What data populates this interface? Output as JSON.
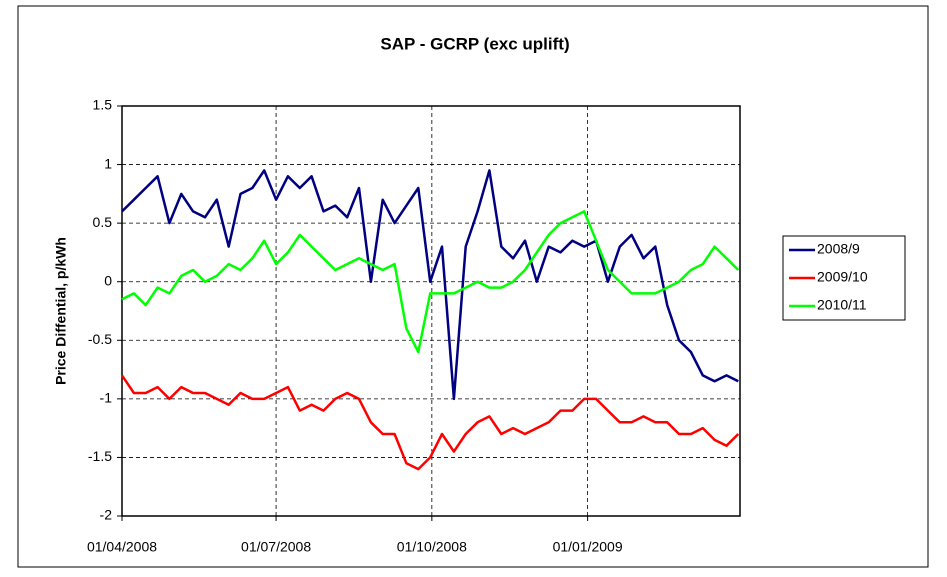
{
  "chart_data": {
    "type": "line",
    "title": "SAP - GCRP (exc uplift)",
    "y_label": "Price Diffential, p/kWh",
    "x": [
      "01/04/2008",
      "08/04/2008",
      "15/04/2008",
      "22/04/2008",
      "29/04/2008",
      "06/05/2008",
      "13/05/2008",
      "20/05/2008",
      "27/05/2008",
      "03/06/2008",
      "10/06/2008",
      "17/06/2008",
      "24/06/2008",
      "01/07/2008",
      "08/07/2008",
      "15/07/2008",
      "22/07/2008",
      "29/07/2008",
      "05/08/2008",
      "12/08/2008",
      "19/08/2008",
      "26/08/2008",
      "02/09/2008",
      "09/09/2008",
      "16/09/2008",
      "23/09/2008",
      "30/09/2008",
      "07/10/2008",
      "14/10/2008",
      "21/10/2008",
      "28/10/2008",
      "04/11/2008",
      "11/11/2008",
      "18/11/2008",
      "25/11/2008",
      "02/12/2008",
      "09/12/2008",
      "16/12/2008",
      "23/12/2008",
      "30/12/2008",
      "06/01/2009",
      "13/01/2009",
      "20/01/2009",
      "27/01/2009",
      "03/02/2009",
      "10/02/2009",
      "17/02/2009",
      "24/02/2009",
      "03/03/2009",
      "10/03/2009",
      "17/03/2009",
      "24/03/2009",
      "31/03/2009"
    ],
    "series": [
      {
        "name": "2008/9",
        "color": "#000080",
        "values": [
          0.6,
          0.7,
          0.8,
          0.9,
          0.5,
          0.75,
          0.6,
          0.55,
          0.7,
          0.3,
          0.75,
          0.8,
          0.95,
          0.7,
          0.9,
          0.8,
          0.9,
          0.6,
          0.65,
          0.55,
          0.8,
          0.0,
          0.7,
          0.5,
          0.65,
          0.8,
          0.0,
          0.3,
          -1.0,
          0.3,
          0.6,
          0.95,
          0.3,
          0.2,
          0.35,
          0.0,
          0.3,
          0.25,
          0.35,
          0.3,
          0.35,
          0.0,
          0.3,
          0.4,
          0.2,
          0.3,
          -0.2,
          -0.5,
          -0.6,
          -0.8,
          -0.85,
          -0.8,
          -0.85
        ]
      },
      {
        "name": "2009/10",
        "color": "#ff0000",
        "values": [
          -0.8,
          -0.95,
          -0.95,
          -0.9,
          -1.0,
          -0.9,
          -0.95,
          -0.95,
          -1.0,
          -1.05,
          -0.95,
          -1.0,
          -1.0,
          -0.95,
          -0.9,
          -1.1,
          -1.05,
          -1.1,
          -1.0,
          -0.95,
          -1.0,
          -1.2,
          -1.3,
          -1.3,
          -1.55,
          -1.6,
          -1.5,
          -1.3,
          -1.45,
          -1.3,
          -1.2,
          -1.15,
          -1.3,
          -1.25,
          -1.3,
          -1.25,
          -1.2,
          -1.1,
          -1.1,
          -1.0,
          -1.0,
          -1.1,
          -1.2,
          -1.2,
          -1.15,
          -1.2,
          -1.2,
          -1.3,
          -1.3,
          -1.25,
          -1.35,
          -1.4,
          -1.3
        ]
      },
      {
        "name": "2010/11",
        "color": "#00ff00",
        "values": [
          -0.15,
          -0.1,
          -0.2,
          -0.05,
          -0.1,
          0.05,
          0.1,
          0.0,
          0.05,
          0.15,
          0.1,
          0.2,
          0.35,
          0.15,
          0.25,
          0.4,
          0.3,
          0.2,
          0.1,
          0.15,
          0.2,
          0.15,
          0.1,
          0.15,
          -0.4,
          -0.6,
          -0.1,
          -0.1,
          -0.1,
          -0.05,
          0.0,
          -0.05,
          -0.05,
          0.0,
          0.1,
          0.25,
          0.4,
          0.5,
          0.55,
          0.6,
          0.35,
          0.1,
          0.0,
          -0.1,
          -0.1,
          -0.1,
          -0.05,
          0.0,
          0.1,
          0.15,
          0.3,
          0.2,
          0.1
        ]
      }
    ],
    "xlim": [
      "01/04/2008",
      "01/04/2009"
    ],
    "xticks": [
      "01/04/2008",
      "01/07/2008",
      "01/10/2008",
      "01/01/2009"
    ],
    "ylim": [
      -2,
      1.5
    ],
    "yticks": [
      -2,
      -1.5,
      -1,
      -0.5,
      0,
      0.5,
      1,
      1.5
    ],
    "grid": true,
    "legend": "right"
  }
}
